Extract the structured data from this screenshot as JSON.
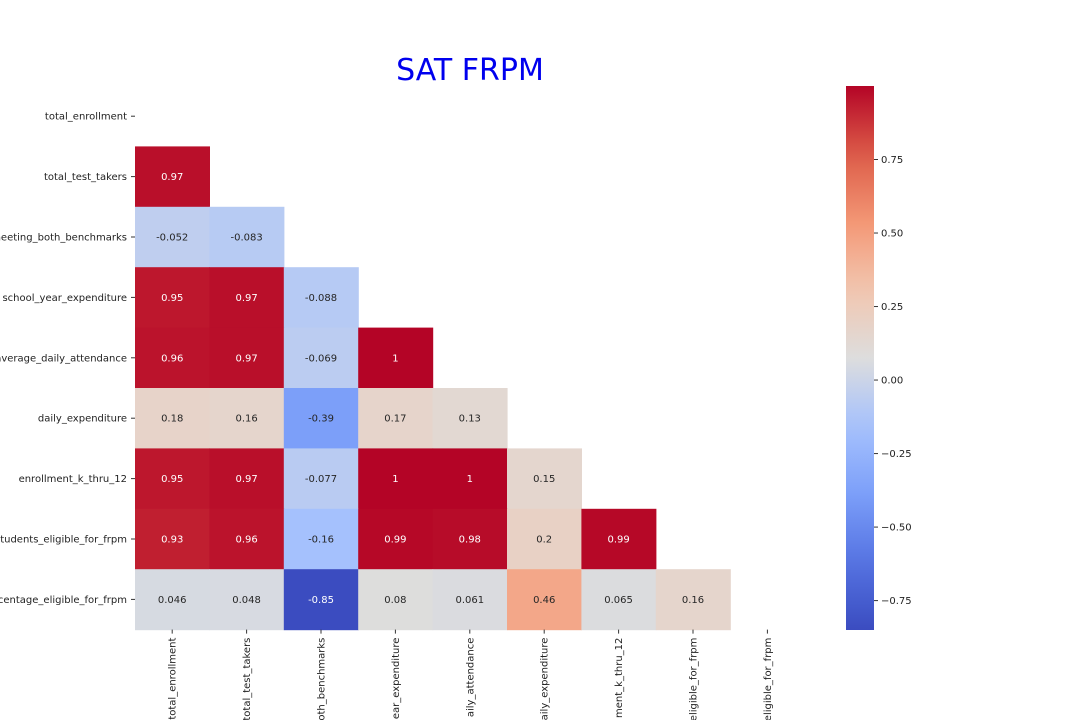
{
  "chart_data": {
    "type": "heatmap",
    "title": "SAT FRPM",
    "row_labels": [
      "total_enrollment",
      "total_test_takers",
      "neeting_both_benchmarks",
      "school_year_expenditure",
      "average_daily_attendance",
      "daily_expenditure",
      "enrollment_k_thru_12",
      "tudents_eligible_for_frpm",
      "rcentage_eligible_for_frpm"
    ],
    "col_labels": [
      "total_enrollment",
      "total_test_takers",
      "oth_benchmarks",
      "ear_expenditure",
      "aily_attendance",
      "aily_expenditure",
      "ment_k_thru_12",
      "eligible_for_frpm",
      "eligible_for_frpm"
    ],
    "values": [
      [
        null,
        null,
        null,
        null,
        null,
        null,
        null,
        null,
        null
      ],
      [
        0.97,
        null,
        null,
        null,
        null,
        null,
        null,
        null,
        null
      ],
      [
        -0.052,
        -0.083,
        null,
        null,
        null,
        null,
        null,
        null,
        null
      ],
      [
        0.95,
        0.97,
        -0.088,
        null,
        null,
        null,
        null,
        null,
        null
      ],
      [
        0.96,
        0.97,
        -0.069,
        1,
        null,
        null,
        null,
        null,
        null
      ],
      [
        0.18,
        0.16,
        -0.39,
        0.17,
        0.13,
        null,
        null,
        null,
        null
      ],
      [
        0.95,
        0.97,
        -0.077,
        1,
        1,
        0.15,
        null,
        null,
        null
      ],
      [
        0.93,
        0.96,
        -0.16,
        0.99,
        0.98,
        0.2,
        0.99,
        null,
        null
      ],
      [
        0.046,
        0.048,
        -0.85,
        0.08,
        0.061,
        0.46,
        0.065,
        0.16,
        null
      ]
    ],
    "display_values": [
      [
        "",
        "",
        "",
        "",
        "",
        "",
        "",
        "",
        ""
      ],
      [
        "0.97",
        "",
        "",
        "",
        "",
        "",
        "",
        "",
        ""
      ],
      [
        "-0.052",
        "-0.083",
        "",
        "",
        "",
        "",
        "",
        "",
        ""
      ],
      [
        "0.95",
        "0.97",
        "-0.088",
        "",
        "",
        "",
        "",
        "",
        ""
      ],
      [
        "0.96",
        "0.97",
        "-0.069",
        "1",
        "",
        "",
        "",
        "",
        ""
      ],
      [
        "0.18",
        "0.16",
        "-0.39",
        "0.17",
        "0.13",
        "",
        "",
        "",
        ""
      ],
      [
        "0.95",
        "0.97",
        "-0.077",
        "1",
        "1",
        "0.15",
        "",
        "",
        ""
      ],
      [
        "0.93",
        "0.96",
        "-0.16",
        "0.99",
        "0.98",
        "0.2",
        "0.99",
        "",
        ""
      ],
      [
        "0.046",
        "0.048",
        "-0.85",
        "0.08",
        "0.061",
        "0.46",
        "0.065",
        "0.16",
        ""
      ]
    ],
    "colormap": "coolwarm",
    "vmin": -0.85,
    "vmax": 1,
    "colorbar_ticks": [
      0.75,
      0.5,
      0.25,
      0.0,
      -0.25,
      -0.5,
      -0.75
    ],
    "colorbar_tick_labels": [
      "0.75",
      "0.50",
      "0.25",
      "0.00",
      "−0.25",
      "−0.50",
      "−0.75"
    ],
    "mask": "upper-triangle"
  }
}
